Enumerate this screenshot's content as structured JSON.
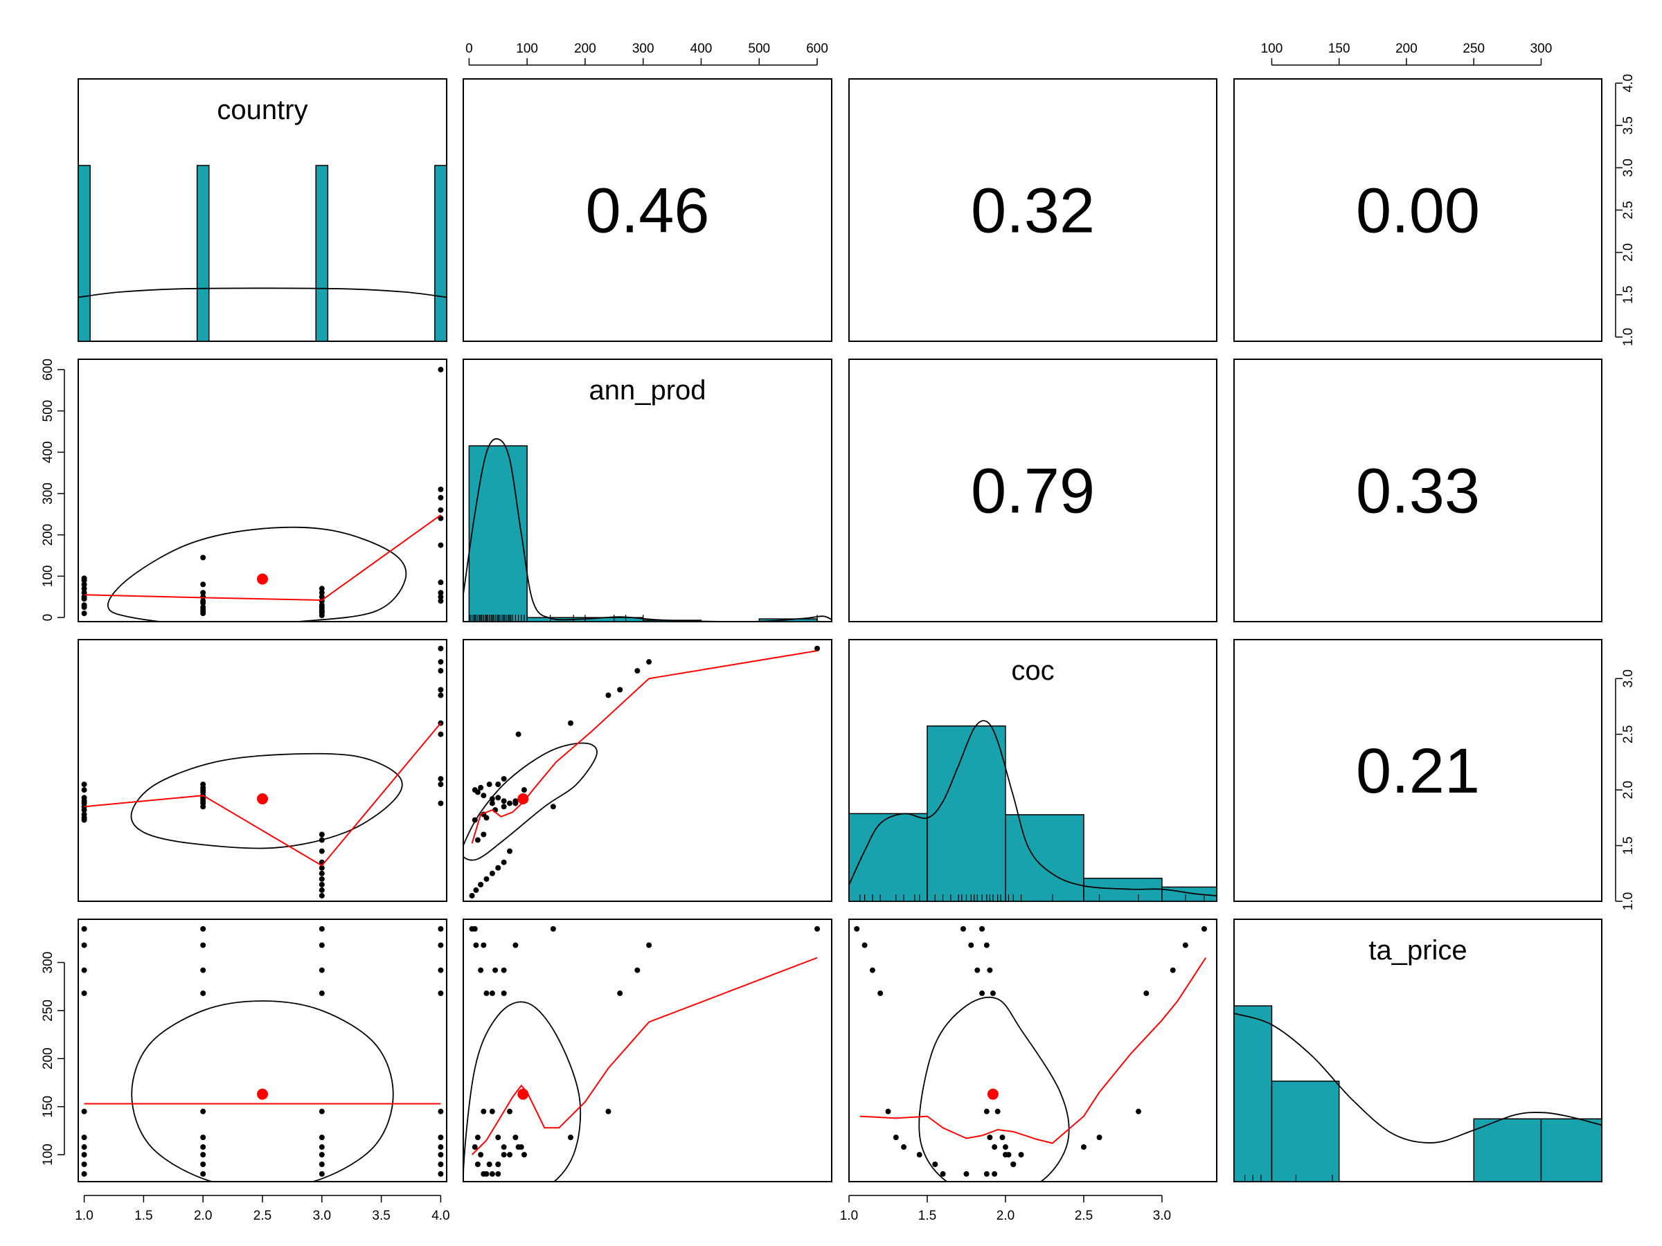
{
  "variables": [
    "country",
    "ann_prod",
    "coc",
    "ta_price"
  ],
  "colors": {
    "bar": "#17a2ae",
    "fit": "#ff0000",
    "point": "#000000",
    "frame": "#000000"
  },
  "chart_data": {
    "type": "scatter-matrix",
    "variables": [
      "country",
      "ann_prod",
      "coc",
      "ta_price"
    ],
    "correlations": [
      {
        "row": 0,
        "col": 1,
        "label": "0.46",
        "value": 0.46
      },
      {
        "row": 0,
        "col": 2,
        "label": "0.32",
        "value": 0.32
      },
      {
        "row": 0,
        "col": 3,
        "label": "0.00",
        "value": 0.0
      },
      {
        "row": 1,
        "col": 2,
        "label": "0.79",
        "value": 0.79
      },
      {
        "row": 1,
        "col": 3,
        "label": "0.33",
        "value": 0.33
      },
      {
        "row": 2,
        "col": 3,
        "label": "0.21",
        "value": 0.21
      }
    ],
    "axes": {
      "country": {
        "range": [
          0.95,
          4.05
        ],
        "ticks": [
          1.0,
          1.5,
          2.0,
          2.5,
          3.0,
          3.5,
          4.0
        ],
        "tick_labels": [
          "1.0",
          "1.5",
          "2.0",
          "2.5",
          "3.0",
          "3.5",
          "4.0"
        ]
      },
      "ann_prod": {
        "range": [
          -10,
          625
        ],
        "ticks": [
          0,
          100,
          200,
          300,
          400,
          500,
          600
        ],
        "tick_labels": [
          "0",
          "100",
          "200",
          "300",
          "400",
          "500",
          "600"
        ]
      },
      "coc": {
        "range": [
          1.0,
          3.35
        ],
        "ticks": [
          1.0,
          1.5,
          2.0,
          2.5,
          3.0
        ],
        "tick_labels": [
          "1.0",
          "1.5",
          "2.0",
          "2.5",
          "3.0"
        ]
      },
      "ta_price": {
        "range": [
          72,
          345
        ],
        "ticks": [
          100,
          150,
          200,
          250,
          300
        ],
        "tick_labels": [
          "100",
          "150",
          "200",
          "250",
          "300"
        ]
      }
    },
    "histograms": {
      "country": {
        "bins": [
          [
            0.95,
            1.05
          ],
          [
            1.95,
            2.05
          ],
          [
            2.95,
            3.05
          ],
          [
            3.95,
            4.05
          ]
        ],
        "counts": [
          10,
          10,
          10,
          10
        ]
      },
      "ann_prod": {
        "bins": [
          [
            0,
            100
          ],
          [
            100,
            200
          ],
          [
            200,
            300
          ],
          [
            300,
            400
          ],
          [
            400,
            500
          ],
          [
            500,
            600
          ]
        ],
        "counts": [
          26,
          0.6,
          0.6,
          0.2,
          0,
          0.4
        ]
      },
      "coc": {
        "bins": [
          [
            1.0,
            1.5
          ],
          [
            1.5,
            2.0
          ],
          [
            2.0,
            2.5
          ],
          [
            2.5,
            3.0
          ],
          [
            3.0,
            3.5
          ]
        ],
        "counts": [
          8,
          16,
          7.9,
          2.1,
          1.3
        ]
      },
      "ta_price": {
        "bins": [
          [
            72,
            100
          ],
          [
            100,
            150
          ],
          [
            150,
            250
          ],
          [
            250,
            300
          ],
          [
            300,
            350
          ]
        ],
        "counts": [
          14,
          8,
          0,
          5,
          5
        ]
      }
    },
    "density": {
      "country": [
        [
          0.95,
          2.5
        ],
        [
          1.3,
          2.8
        ],
        [
          1.8,
          2.98
        ],
        [
          2.5,
          3.02
        ],
        [
          3.2,
          2.98
        ],
        [
          3.7,
          2.8
        ],
        [
          4.05,
          2.5
        ]
      ],
      "ann_prod": [
        [
          -10,
          4
        ],
        [
          10,
          16
        ],
        [
          30,
          25
        ],
        [
          50,
          27
        ],
        [
          70,
          24
        ],
        [
          90,
          13
        ],
        [
          110,
          3
        ],
        [
          140,
          0.5
        ],
        [
          200,
          0.4
        ],
        [
          260,
          0.7
        ],
        [
          320,
          0.3
        ],
        [
          400,
          0.05
        ],
        [
          500,
          0.02
        ],
        [
          580,
          0.5
        ],
        [
          610,
          0.8
        ],
        [
          625,
          0.3
        ]
      ],
      "coc": [
        [
          1.0,
          1.5
        ],
        [
          1.1,
          4.6
        ],
        [
          1.2,
          7.1
        ],
        [
          1.35,
          8.0
        ],
        [
          1.5,
          7.6
        ],
        [
          1.6,
          9.1
        ],
        [
          1.7,
          12.4
        ],
        [
          1.8,
          15.8
        ],
        [
          1.88,
          16.4
        ],
        [
          1.95,
          14.6
        ],
        [
          2.05,
          9.6
        ],
        [
          2.15,
          4.8
        ],
        [
          2.3,
          2.5
        ],
        [
          2.5,
          1.4
        ],
        [
          2.8,
          1.1
        ],
        [
          3.0,
          1.1
        ],
        [
          3.2,
          0.7
        ],
        [
          3.35,
          0.5
        ]
      ],
      "ta_price": [
        [
          72,
          13.4
        ],
        [
          100,
          12.5
        ],
        [
          130,
          10.0
        ],
        [
          160,
          6.5
        ],
        [
          190,
          3.8
        ],
        [
          220,
          3.1
        ],
        [
          250,
          4.1
        ],
        [
          280,
          5.3
        ],
        [
          300,
          5.5
        ],
        [
          320,
          5.2
        ],
        [
          345,
          4.5
        ]
      ]
    },
    "rugs": {
      "ann_prod": [
        2,
        5,
        8,
        10,
        12,
        15,
        18,
        20,
        22,
        25,
        28,
        30,
        32,
        35,
        38,
        40,
        42,
        45,
        48,
        50,
        52,
        55,
        58,
        60,
        62,
        65,
        68,
        70,
        72,
        75,
        80,
        85,
        90,
        95,
        100,
        140,
        180,
        200,
        250,
        270,
        300,
        600
      ],
      "coc": [
        1.07,
        1.1,
        1.15,
        1.2,
        1.3,
        1.35,
        1.42,
        1.45,
        1.5,
        1.55,
        1.6,
        1.65,
        1.7,
        1.72,
        1.75,
        1.78,
        1.8,
        1.82,
        1.85,
        1.88,
        1.9,
        1.92,
        1.95,
        1.97,
        2.0,
        2.02,
        2.05,
        2.1,
        2.3,
        2.5,
        2.6,
        2.85,
        3.0,
        3.15,
        3.27
      ],
      "ta_price": [
        80,
        86,
        92,
        100,
        118,
        145
      ]
    },
    "points": {
      "country": [
        1,
        1,
        1,
        1,
        1,
        1,
        1,
        1,
        1,
        1,
        2,
        2,
        2,
        2,
        2,
        2,
        2,
        2,
        2,
        2,
        3,
        3,
        3,
        3,
        3,
        3,
        3,
        3,
        3,
        3,
        4,
        4,
        4,
        4,
        4,
        4,
        4,
        4,
        4,
        4
      ],
      "ann_prod": [
        10,
        25,
        45,
        60,
        70,
        80,
        90,
        95,
        50,
        30,
        145,
        80,
        60,
        40,
        25,
        15,
        10,
        20,
        35,
        50,
        5,
        12,
        20,
        30,
        40,
        50,
        60,
        70,
        15,
        25,
        600,
        310,
        290,
        260,
        240,
        175,
        85,
        60,
        50,
        40
      ],
      "coc": [
        1.73,
        1.78,
        1.82,
        1.85,
        1.88,
        1.9,
        1.93,
        2.0,
        2.05,
        1.75,
        1.85,
        1.88,
        1.9,
        1.92,
        1.95,
        1.98,
        2.0,
        2.02,
        2.05,
        1.93,
        1.05,
        1.1,
        1.15,
        1.2,
        1.25,
        1.3,
        1.35,
        1.45,
        1.55,
        1.6,
        3.27,
        3.15,
        3.07,
        2.9,
        2.85,
        2.6,
        2.5,
        2.1,
        2.05,
        1.88
      ],
      "ta_price": [
        335,
        318,
        292,
        268,
        145,
        118,
        108,
        100,
        90,
        80,
        335,
        318,
        292,
        268,
        145,
        118,
        108,
        100,
        90,
        80,
        335,
        318,
        292,
        268,
        145,
        118,
        108,
        100,
        90,
        80,
        335,
        318,
        292,
        268,
        145,
        118,
        108,
        100,
        90,
        80
      ]
    },
    "centroids": {
      "country": 2.5,
      "ann_prod": 93,
      "coc": 1.92,
      "ta_price": 163
    },
    "ellipses": {
      "0-1": [
        [
          1.2,
          30
        ],
        [
          1.4,
          100
        ],
        [
          1.9,
          180
        ],
        [
          2.5,
          215
        ],
        [
          3.1,
          210
        ],
        [
          3.6,
          155
        ],
        [
          3.7,
          90
        ],
        [
          3.45,
          15
        ],
        [
          2.8,
          -10
        ],
        [
          2.1,
          -20
        ],
        [
          1.4,
          0
        ]
      ],
      "0-2": [
        [
          1.4,
          1.8
        ],
        [
          1.6,
          2.05
        ],
        [
          2.1,
          2.25
        ],
        [
          2.7,
          2.32
        ],
        [
          3.3,
          2.3
        ],
        [
          3.65,
          2.12
        ],
        [
          3.6,
          1.9
        ],
        [
          3.2,
          1.62
        ],
        [
          2.6,
          1.48
        ],
        [
          1.9,
          1.52
        ],
        [
          1.5,
          1.62
        ]
      ],
      "0-3": [
        [
          1.4,
          163
        ],
        [
          1.55,
          215
        ],
        [
          2.0,
          250
        ],
        [
          2.5,
          260
        ],
        [
          3.0,
          250
        ],
        [
          3.45,
          215
        ],
        [
          3.6,
          163
        ],
        [
          3.45,
          110
        ],
        [
          3.0,
          75
        ],
        [
          2.5,
          66
        ],
        [
          2.0,
          75
        ],
        [
          1.55,
          110
        ]
      ],
      "1-2": [
        [
          -10,
          1.5
        ],
        [
          20,
          1.8
        ],
        [
          70,
          2.1
        ],
        [
          140,
          2.35
        ],
        [
          200,
          2.42
        ],
        [
          220,
          2.32
        ],
        [
          185,
          2.05
        ],
        [
          130,
          1.85
        ],
        [
          60,
          1.55
        ],
        [
          15,
          1.38
        ],
        [
          -10,
          1.4
        ]
      ],
      "1-3": [
        [
          -10,
          75
        ],
        [
          10,
          190
        ],
        [
          50,
          245
        ],
        [
          100,
          258
        ],
        [
          150,
          225
        ],
        [
          190,
          160
        ],
        [
          180,
          100
        ],
        [
          130,
          65
        ],
        [
          60,
          60
        ],
        [
          10,
          65
        ]
      ],
      "2-3": [
        [
          1.45,
          140
        ],
        [
          1.55,
          215
        ],
        [
          1.75,
          255
        ],
        [
          1.95,
          262
        ],
        [
          2.1,
          230
        ],
        [
          2.35,
          165
        ],
        [
          2.4,
          115
        ],
        [
          2.25,
          75
        ],
        [
          2.0,
          60
        ],
        [
          1.7,
          65
        ],
        [
          1.5,
          95
        ]
      ]
    },
    "loess": {
      "0-1": [
        [
          1,
          55
        ],
        [
          2,
          48
        ],
        [
          3,
          42
        ],
        [
          4,
          248
        ]
      ],
      "0-2": [
        [
          1,
          1.85
        ],
        [
          2,
          1.95
        ],
        [
          3,
          1.32
        ],
        [
          4,
          2.6
        ]
      ],
      "0-3": [
        [
          1,
          153
        ],
        [
          2,
          153
        ],
        [
          3,
          153
        ],
        [
          4,
          153
        ]
      ],
      "1-2": [
        [
          5,
          1.52
        ],
        [
          20,
          1.78
        ],
        [
          40,
          1.82
        ],
        [
          55,
          1.76
        ],
        [
          75,
          1.8
        ],
        [
          95,
          1.9
        ],
        [
          110,
          2.0
        ],
        [
          150,
          2.25
        ],
        [
          210,
          2.52
        ],
        [
          310,
          3.0
        ],
        [
          600,
          3.25
        ]
      ],
      "1-3": [
        [
          5,
          100
        ],
        [
          30,
          115
        ],
        [
          50,
          135
        ],
        [
          75,
          160
        ],
        [
          90,
          172
        ],
        [
          100,
          165
        ],
        [
          130,
          128
        ],
        [
          155,
          128
        ],
        [
          200,
          155
        ],
        [
          240,
          190
        ],
        [
          310,
          238
        ],
        [
          600,
          305
        ]
      ],
      "2-3": [
        [
          1.07,
          140
        ],
        [
          1.3,
          138
        ],
        [
          1.5,
          140
        ],
        [
          1.6,
          128
        ],
        [
          1.75,
          117
        ],
        [
          1.85,
          120
        ],
        [
          1.95,
          126
        ],
        [
          2.05,
          124
        ],
        [
          2.2,
          116
        ],
        [
          2.3,
          112
        ],
        [
          2.5,
          140
        ],
        [
          2.6,
          165
        ],
        [
          2.8,
          205
        ],
        [
          3.0,
          240
        ],
        [
          3.1,
          260
        ],
        [
          3.28,
          305
        ]
      ]
    }
  }
}
